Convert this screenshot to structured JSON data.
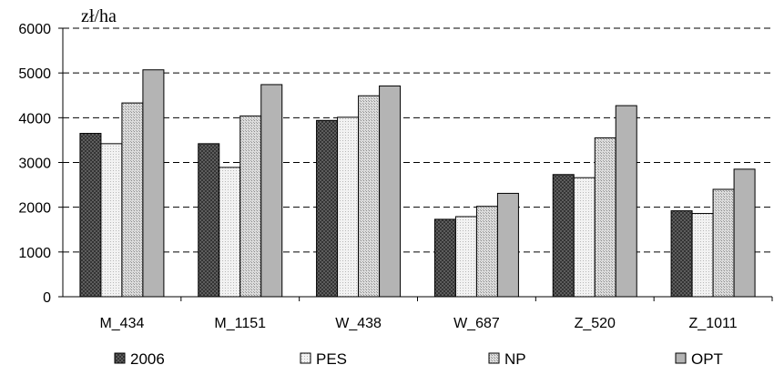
{
  "chart_data": {
    "type": "bar",
    "title": "",
    "xlabel": "",
    "ylabel": "zł/ha",
    "ylim": [
      0,
      6000
    ],
    "yticks": [
      "0",
      "1000",
      "2000",
      "3000",
      "4000",
      "5000",
      "6000"
    ],
    "grid": true,
    "legend_position": "bottom",
    "categories": [
      "M_434",
      "M_1151",
      "W_438",
      "W_687",
      "Z_520",
      "Z_1011"
    ],
    "series": [
      {
        "name": "2006",
        "pattern": "crosshatch",
        "color": "#5a5a5a",
        "values": [
          3650,
          3420,
          3940,
          1730,
          2730,
          1920
        ]
      },
      {
        "name": "PES",
        "pattern": "fine-dots",
        "color": "#ebebeb",
        "values": [
          3420,
          2890,
          4010,
          1790,
          2660,
          1860
        ]
      },
      {
        "name": "NP",
        "pattern": "dots",
        "color": "#d2d2d2",
        "values": [
          4330,
          4040,
          4490,
          2020,
          3550,
          2400
        ]
      },
      {
        "name": "OPT",
        "pattern": "solid",
        "color": "#b4b4b4",
        "values": [
          5070,
          4740,
          4710,
          2310,
          4270,
          2850
        ]
      }
    ]
  }
}
